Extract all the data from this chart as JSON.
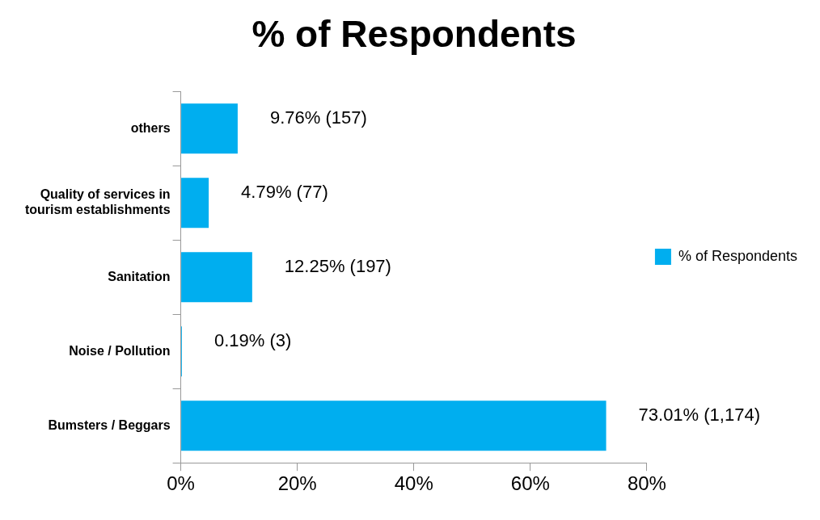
{
  "chart_data": {
    "type": "bar",
    "orientation": "horizontal",
    "title": "% of Respondents",
    "categories": [
      "others",
      "Quality of services in tourism establishments",
      "Sanitation",
      "Noise / Pollution",
      "Bumsters / Beggars"
    ],
    "series": [
      {
        "name": "% of Respondents",
        "color": "#00aeef",
        "values": [
          9.76,
          4.79,
          12.25,
          0.19,
          73.01
        ],
        "value_labels": [
          "9.76% (157)",
          "4.79% (77)",
          "12.25% (197)",
          "0.19% (3)",
          "73.01% (1,174)"
        ]
      }
    ],
    "xlim": [
      0,
      80
    ],
    "xticks": [
      {
        "value": 0,
        "label": "0%"
      },
      {
        "value": 20,
        "label": "20%"
      },
      {
        "value": 40,
        "label": "40%"
      },
      {
        "value": 60,
        "label": "60%"
      },
      {
        "value": 80,
        "label": "80%"
      }
    ],
    "grid": false,
    "legend": "right"
  }
}
